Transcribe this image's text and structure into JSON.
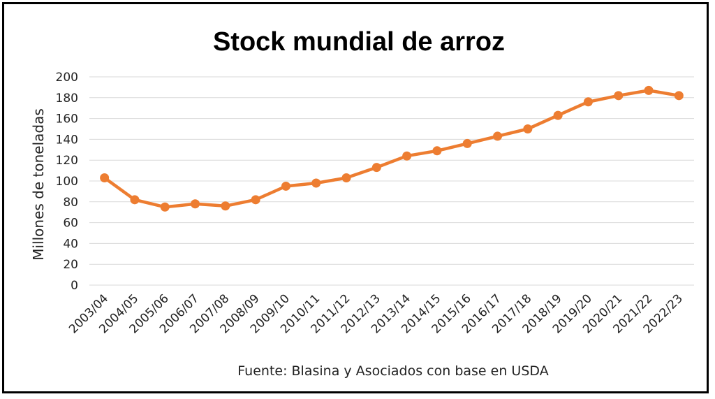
{
  "chart_data": {
    "type": "line",
    "title": "Stock mundial de arroz",
    "ylabel": "Millones de toneladas",
    "xlabel": "",
    "source": "Fuente: Blasina y Asociados con base en USDA",
    "ylim": [
      0,
      200
    ],
    "yticks": [
      "0",
      "20",
      "40",
      "60",
      "80",
      "100",
      "120",
      "140",
      "160",
      "180",
      "200"
    ],
    "grid": true,
    "line_color": "#ED7D31",
    "categories": [
      "2003/04",
      "2004/05",
      "2005/06",
      "2006/07",
      "2007/08",
      "2008/09",
      "2009/10",
      "2010/11",
      "2011/12",
      "2012/13",
      "2013/14",
      "2014/15",
      "2015/16",
      "2016/17",
      "2017/18",
      "2018/19",
      "2019/20",
      "2020/21",
      "2021/22",
      "2022/23"
    ],
    "values": [
      103,
      82,
      75,
      78,
      76,
      82,
      95,
      98,
      103,
      113,
      124,
      129,
      136,
      143,
      150,
      163,
      176,
      182,
      187,
      182
    ]
  }
}
